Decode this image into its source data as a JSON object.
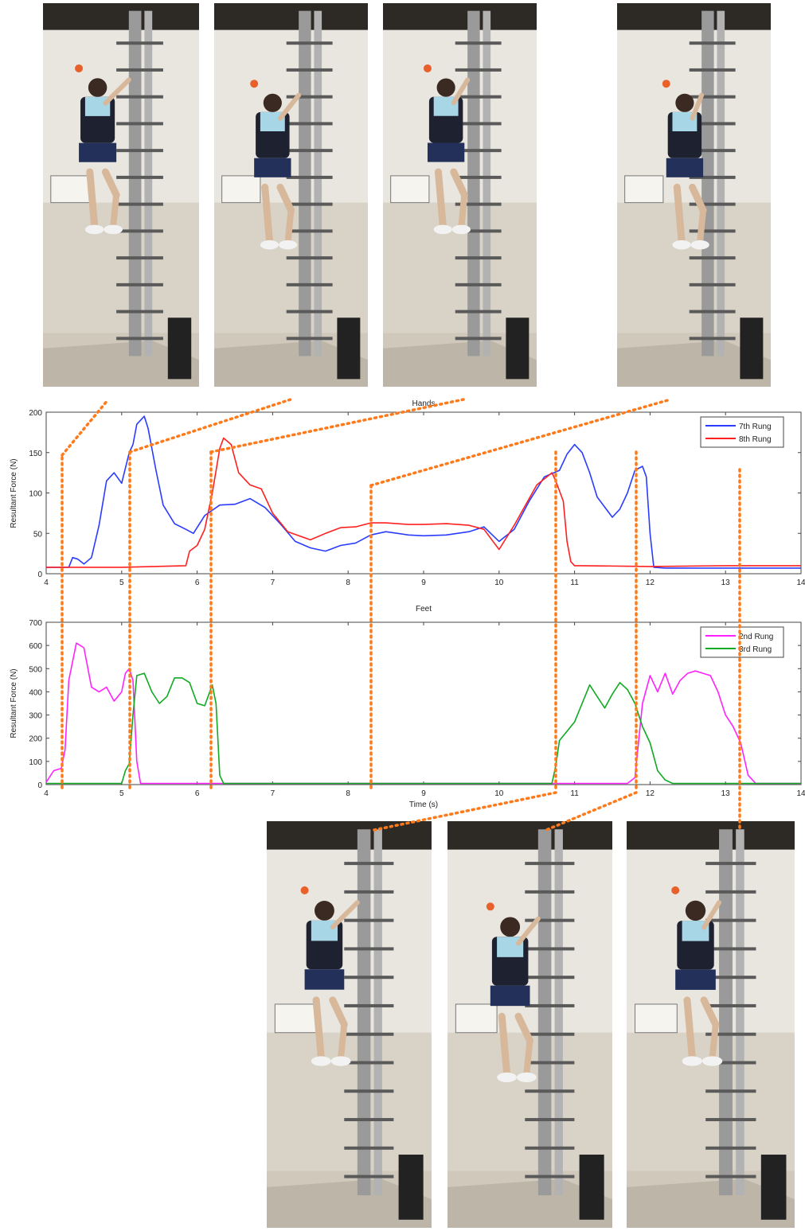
{
  "colors": {
    "seven_rung": "#2a3cff",
    "eight_rung": "#ff2020",
    "second_rung": "#ff22ff",
    "third_rung": "#11aa22",
    "marker": "#ff7a1a"
  },
  "photos_top": [
    {
      "icon": "climber-photo"
    },
    {
      "icon": "climber-photo"
    },
    {
      "icon": "climber-photo"
    },
    {
      "icon": "climber-photo"
    }
  ],
  "photos_bottom": [
    {
      "icon": "climber-photo"
    },
    {
      "icon": "climber-photo"
    },
    {
      "icon": "climber-photo"
    }
  ],
  "chart_data": [
    {
      "type": "line",
      "title": "Hands",
      "xlabel": "",
      "ylabel": "Resultant Force (N)",
      "xlim": [
        4,
        14
      ],
      "ylim": [
        0,
        200
      ],
      "xticks": [
        "4",
        "5",
        "6",
        "7",
        "8",
        "9",
        "10",
        "11",
        "12",
        "13",
        "14"
      ],
      "yticks": [
        "0",
        "50",
        "100",
        "150",
        "200"
      ],
      "legend": "top-right",
      "grid": false,
      "series": [
        {
          "name": "7th Rung",
          "color": "#2a3cff",
          "x": [
            4.0,
            4.3,
            4.35,
            4.42,
            4.5,
            4.6,
            4.7,
            4.8,
            4.9,
            5.0,
            5.1,
            5.15,
            5.2,
            5.3,
            5.35,
            5.45,
            5.55,
            5.7,
            5.85,
            5.95,
            6.1,
            6.3,
            6.5,
            6.7,
            6.9,
            7.1,
            7.3,
            7.5,
            7.7,
            7.9,
            8.1,
            8.3,
            8.5,
            8.8,
            9.0,
            9.3,
            9.6,
            9.8,
            10.0,
            10.2,
            10.4,
            10.6,
            10.8,
            10.9,
            11.0,
            11.1,
            11.2,
            11.3,
            11.5,
            11.6,
            11.7,
            11.8,
            11.9,
            11.95,
            12.0,
            12.05,
            12.2,
            12.6,
            13.0,
            13.5,
            14.0
          ],
          "y": [
            8,
            8,
            20,
            18,
            12,
            20,
            60,
            115,
            125,
            112,
            150,
            160,
            185,
            195,
            180,
            130,
            85,
            62,
            55,
            50,
            72,
            85,
            86,
            93,
            82,
            62,
            40,
            32,
            28,
            35,
            38,
            48,
            52,
            48,
            47,
            48,
            52,
            58,
            40,
            55,
            90,
            120,
            128,
            148,
            160,
            150,
            125,
            95,
            70,
            80,
            100,
            128,
            133,
            120,
            50,
            8,
            7,
            7,
            7,
            7,
            7
          ]
        },
        {
          "name": "8th Rung",
          "color": "#ff2020",
          "x": [
            4.0,
            5.0,
            5.85,
            5.9,
            6.0,
            6.1,
            6.2,
            6.3,
            6.35,
            6.45,
            6.55,
            6.7,
            6.85,
            7.0,
            7.2,
            7.5,
            7.7,
            7.9,
            8.1,
            8.3,
            8.5,
            8.8,
            9.0,
            9.3,
            9.6,
            9.8,
            10.0,
            10.2,
            10.5,
            10.7,
            10.75,
            10.85,
            10.9,
            10.95,
            11.0,
            11.1,
            12.0,
            13.0,
            13.3,
            13.5,
            14.0
          ],
          "y": [
            8,
            8,
            10,
            28,
            35,
            55,
            100,
            155,
            168,
            160,
            125,
            110,
            105,
            75,
            52,
            42,
            50,
            57,
            58,
            63,
            63,
            61,
            61,
            62,
            60,
            55,
            30,
            60,
            110,
            125,
            115,
            90,
            40,
            15,
            10,
            10,
            9,
            10,
            10,
            10,
            10
          ]
        }
      ]
    },
    {
      "type": "line",
      "title": "Feet",
      "xlabel": "Time (s)",
      "ylabel": "Resultant Force (N)",
      "xlim": [
        4,
        14
      ],
      "ylim": [
        0,
        700
      ],
      "xticks": [
        "4",
        "5",
        "6",
        "7",
        "8",
        "9",
        "10",
        "11",
        "12",
        "13",
        "14"
      ],
      "yticks": [
        "0",
        "100",
        "200",
        "300",
        "400",
        "500",
        "600",
        "700"
      ],
      "legend": "top-right",
      "grid": false,
      "series": [
        {
          "name": "2nd Rung",
          "color": "#ff22ff",
          "x": [
            4.0,
            4.1,
            4.2,
            4.25,
            4.3,
            4.4,
            4.5,
            4.6,
            4.7,
            4.8,
            4.9,
            5.0,
            5.05,
            5.1,
            5.15,
            5.2,
            5.25,
            5.3,
            5.5,
            11.7,
            11.8,
            11.9,
            12.0,
            12.1,
            12.2,
            12.3,
            12.4,
            12.5,
            12.6,
            12.7,
            12.8,
            12.9,
            13.0,
            13.1,
            13.2,
            13.3,
            13.4,
            14.0
          ],
          "y": [
            10,
            60,
            70,
            150,
            450,
            610,
            590,
            420,
            400,
            420,
            360,
            400,
            480,
            500,
            450,
            100,
            5,
            5,
            5,
            5,
            30,
            350,
            470,
            400,
            480,
            390,
            450,
            480,
            490,
            480,
            470,
            400,
            300,
            250,
            180,
            40,
            5,
            5
          ]
        },
        {
          "name": "3rd Rung",
          "color": "#11aa22",
          "x": [
            4.0,
            5.0,
            5.05,
            5.1,
            5.15,
            5.2,
            5.3,
            5.4,
            5.5,
            5.6,
            5.7,
            5.8,
            5.9,
            6.0,
            6.1,
            6.2,
            6.25,
            6.3,
            6.35,
            6.5,
            10.7,
            10.75,
            10.8,
            10.9,
            11.0,
            11.2,
            11.3,
            11.4,
            11.5,
            11.6,
            11.7,
            11.8,
            11.9,
            12.0,
            12.1,
            12.2,
            12.3,
            14.0
          ],
          "y": [
            5,
            5,
            60,
            90,
            300,
            470,
            480,
            400,
            350,
            380,
            460,
            460,
            440,
            350,
            340,
            430,
            350,
            40,
            5,
            5,
            5,
            80,
            190,
            230,
            270,
            430,
            380,
            330,
            390,
            440,
            410,
            350,
            250,
            180,
            60,
            20,
            5,
            5
          ]
        }
      ]
    }
  ]
}
